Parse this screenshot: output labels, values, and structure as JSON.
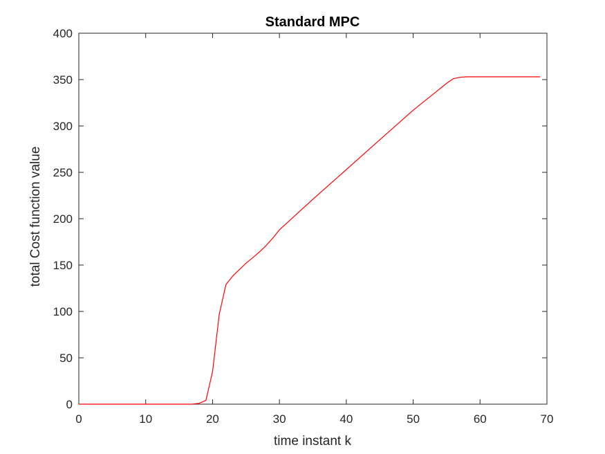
{
  "chart_data": {
    "type": "line",
    "title": "Standard MPC",
    "xlabel": "time instant k",
    "ylabel": "total Cost function value",
    "xlim": [
      0,
      70
    ],
    "ylim": [
      0,
      400
    ],
    "xticks": [
      "0",
      "10",
      "20",
      "30",
      "40",
      "50",
      "60",
      "70"
    ],
    "yticks": [
      "0",
      "50",
      "100",
      "150",
      "200",
      "250",
      "300",
      "350",
      "400"
    ],
    "grid": false,
    "series": [
      {
        "color": "#ff0000",
        "x": [
          0,
          17,
          18,
          19,
          20,
          21,
          22,
          23,
          24,
          25,
          26,
          27,
          28,
          29,
          30,
          35,
          40,
          45,
          50,
          55,
          56,
          57,
          58,
          60,
          65,
          69
        ],
        "y": [
          0,
          0,
          1,
          4,
          35,
          97,
          129,
          138,
          145,
          152,
          158,
          164,
          171,
          179,
          188,
          221,
          253,
          285,
          317,
          346,
          351,
          352.5,
          353,
          353,
          353,
          353
        ]
      }
    ]
  }
}
